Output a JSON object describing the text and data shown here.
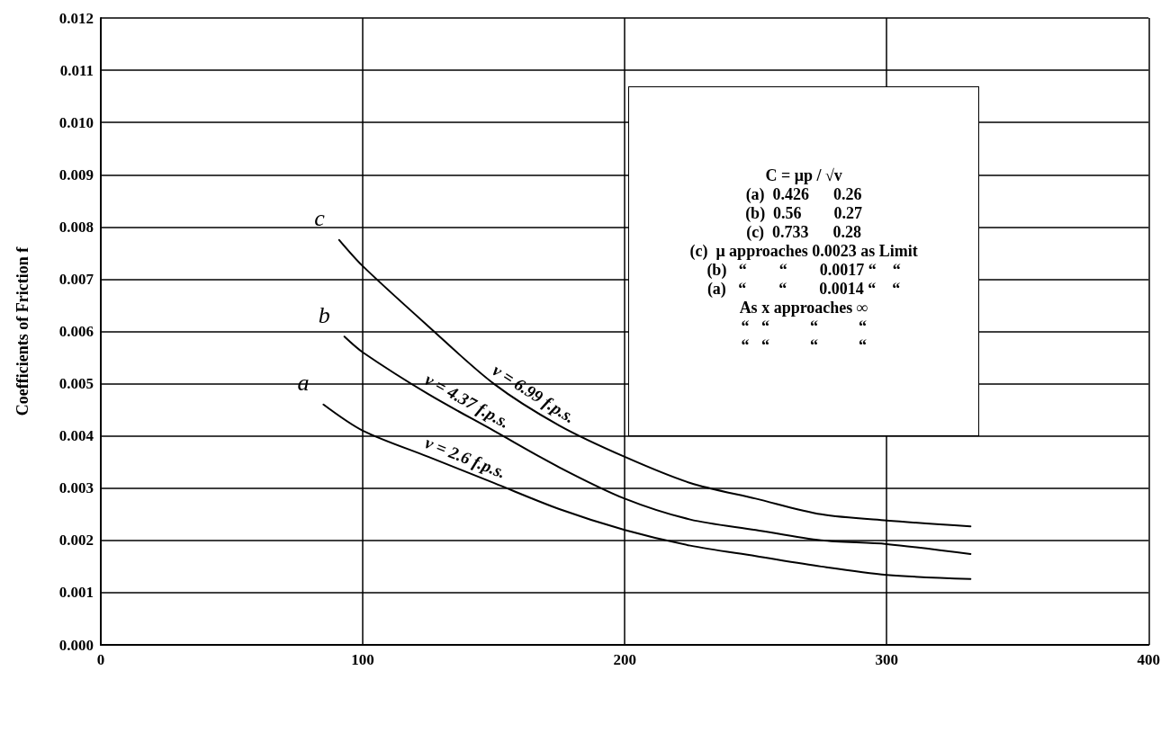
{
  "chart_data": {
    "type": "line",
    "ylabel": "Coefficients of Friction f",
    "xlim": [
      0,
      400
    ],
    "xticks": [
      0,
      100,
      200,
      300,
      400
    ],
    "ylim": [
      0,
      0.012
    ],
    "yticks": [
      {
        "value": 0,
        "label": "0.000"
      },
      {
        "value": 0.001,
        "label": "0.001"
      },
      {
        "value": 0.002,
        "label": "0.002"
      },
      {
        "value": 0.003,
        "label": "0.003"
      },
      {
        "value": 0.004,
        "label": "0.004"
      },
      {
        "value": 0.005,
        "label": "0.005"
      },
      {
        "value": 0.006,
        "label": "0.006"
      },
      {
        "value": 0.007,
        "label": "0.007"
      },
      {
        "value": 0.008,
        "label": "0.008"
      },
      {
        "value": 0.009,
        "label": "0.009"
      },
      {
        "value": 0.01,
        "label": "0.010"
      },
      {
        "value": 0.011,
        "label": "0.011"
      },
      {
        "value": 0.012,
        "label": "0.012"
      }
    ],
    "grid": true,
    "marker": "none",
    "line_style": "solid",
    "series": [
      {
        "name": "c",
        "color": "#000000",
        "x": [
          91,
          100,
          125,
          150,
          175,
          200,
          225,
          250,
          275,
          300,
          332
        ],
        "values": [
          0.00775,
          0.00725,
          0.0061,
          0.005,
          0.0042,
          0.0036,
          0.0031,
          0.0028,
          0.0025,
          0.00238,
          0.00227
        ]
      },
      {
        "name": "b",
        "color": "#000000",
        "x": [
          93,
          100,
          125,
          150,
          175,
          200,
          225,
          250,
          275,
          300,
          332
        ],
        "values": [
          0.0059,
          0.0056,
          0.0048,
          0.0041,
          0.0034,
          0.0028,
          0.0024,
          0.0022,
          0.002,
          0.00193,
          0.00174
        ]
      },
      {
        "name": "a",
        "color": "#000000",
        "x": [
          85,
          100,
          125,
          150,
          175,
          200,
          225,
          250,
          275,
          300,
          332
        ],
        "values": [
          0.0046,
          0.0041,
          0.0036,
          0.0031,
          0.0026,
          0.0022,
          0.0019,
          0.0017,
          0.0015,
          0.00134,
          0.00126
        ]
      }
    ],
    "annotations": [
      "v = 6.99 f.p.s.",
      "v = 4.37 f.p.s.",
      "v = 2.6 f.p.s.",
      "C = μp / √v",
      "(a)  0.426      0.26",
      "(b)  0.56        0.27",
      "(c)  0.733      0.28",
      "(c)  μ approaches 0.0023 as Limit",
      "(b)   “        “        0.0017 “    “",
      "(a)   “        “        0.0014 “    “",
      "As x approaches ∞",
      "“   “          “          “",
      "“   “          “          “"
    ]
  }
}
